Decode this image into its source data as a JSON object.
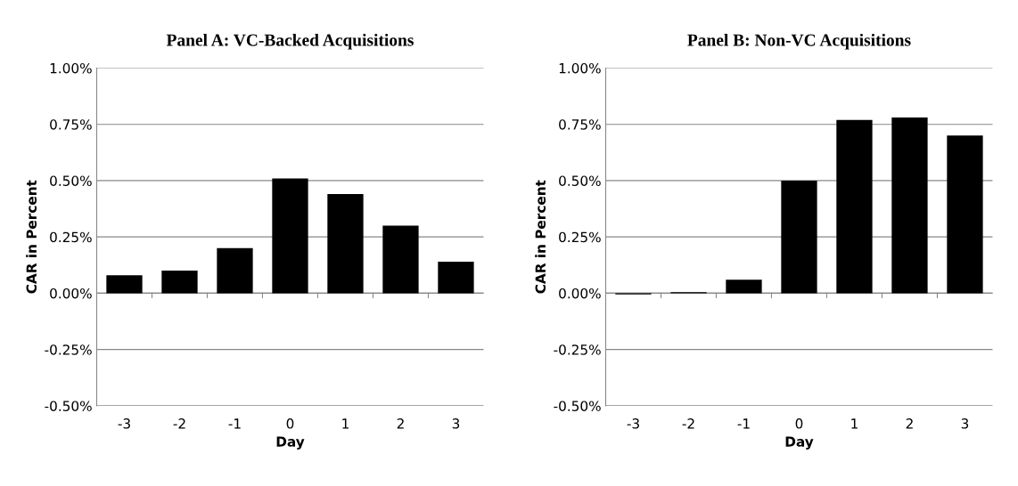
{
  "chart_data": [
    {
      "type": "bar",
      "title": "Panel A: VC-Backed Acquisitions",
      "xlabel": "Day",
      "ylabel": "CAR in Percent",
      "categories": [
        "-3",
        "-2",
        "-1",
        "0",
        "1",
        "2",
        "3"
      ],
      "values": [
        0.08,
        0.1,
        0.2,
        0.51,
        0.44,
        0.3,
        0.14
      ],
      "color": "#000000",
      "ylim": [
        -0.5,
        1.0
      ],
      "yticks": [
        {
          "value": -0.5,
          "label": "-0.50%"
        },
        {
          "value": -0.25,
          "label": "-0.25%"
        },
        {
          "value": 0,
          "label": "0.00%"
        },
        {
          "value": 0.25,
          "label": "0.25%"
        },
        {
          "value": 0.5,
          "label": "0.50%"
        },
        {
          "value": 0.75,
          "label": "0.75%"
        },
        {
          "value": 1.0,
          "label": "1.00%"
        }
      ],
      "grid": "y"
    },
    {
      "type": "bar",
      "title": "Panel B: Non-VC Acquisitions",
      "xlabel": "Day",
      "ylabel": "CAR in Percent",
      "categories": [
        "-3",
        "-2",
        "-1",
        "0",
        "1",
        "2",
        "3"
      ],
      "values": [
        -0.005,
        0.005,
        0.06,
        0.5,
        0.77,
        0.78,
        0.7
      ],
      "color": "#000000",
      "ylim": [
        -0.5,
        1.0
      ],
      "yticks": [
        {
          "value": -0.5,
          "label": "-0.50%"
        },
        {
          "value": -0.25,
          "label": "-0.25%"
        },
        {
          "value": 0,
          "label": "0.00%"
        },
        {
          "value": 0.25,
          "label": "0.25%"
        },
        {
          "value": 0.5,
          "label": "0.50%"
        },
        {
          "value": 0.75,
          "label": "0.75%"
        },
        {
          "value": 1.0,
          "label": "1.00%"
        }
      ],
      "grid": "y"
    }
  ]
}
